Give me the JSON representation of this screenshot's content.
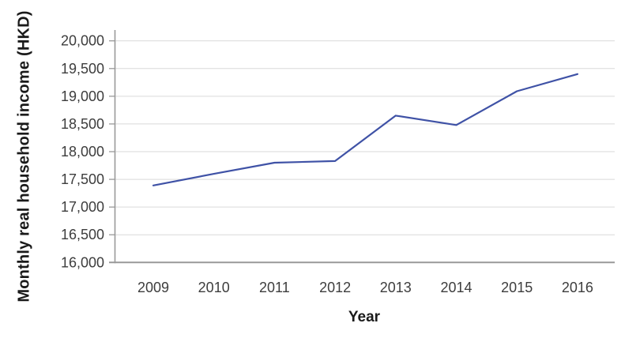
{
  "chart_data": {
    "type": "line",
    "title": "",
    "xlabel": "Year",
    "ylabel": "Monthly real household income (HKD)",
    "x": [
      2009,
      2010,
      2011,
      2012,
      2013,
      2014,
      2015,
      2016
    ],
    "series": [
      {
        "name": "Monthly real household income (HKD)",
        "values": [
          17390,
          17600,
          17800,
          17830,
          18650,
          18480,
          19090,
          19400
        ]
      }
    ],
    "ylim": [
      16000,
      20000
    ],
    "y_tick_step": 500,
    "y_tick_labels": [
      "16,000",
      "16,500",
      "17,000",
      "17,500",
      "18,000",
      "18,500",
      "19,000",
      "19,500",
      "20,000"
    ],
    "grid": "horizontal",
    "legend": "none",
    "colors": {
      "line": "#3F52A6",
      "grid": "#D9D9D9",
      "axis": "#999999",
      "tick_text": "#3D3D3D",
      "title_text": "#1A1A1A",
      "background": "#FFFFFF"
    }
  }
}
